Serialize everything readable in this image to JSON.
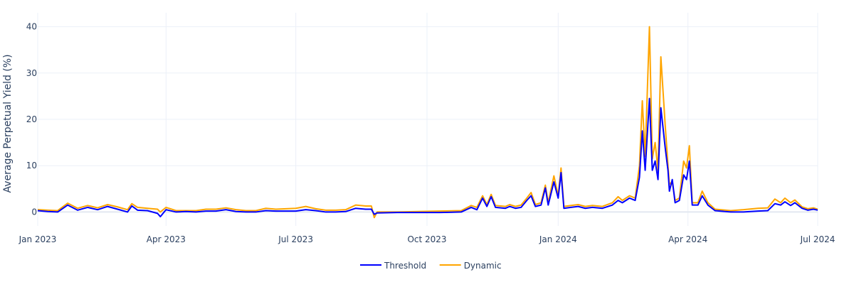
{
  "chart_data": {
    "type": "line",
    "title": "",
    "xlabel": "",
    "ylabel": "Average Perpetual Yield (%)",
    "x_range": [
      "2023-01-01",
      "2024-07-01"
    ],
    "ylim": [
      -3,
      43
    ],
    "x_ticks": [
      {
        "date": "2023-01-01",
        "label": "Jan 2023"
      },
      {
        "date": "2023-04-01",
        "label": "Apr 2023"
      },
      {
        "date": "2023-07-01",
        "label": "Jul 2023"
      },
      {
        "date": "2023-10-01",
        "label": "Oct 2023"
      },
      {
        "date": "2024-01-01",
        "label": "Jan 2024"
      },
      {
        "date": "2024-04-01",
        "label": "Apr 2024"
      },
      {
        "date": "2024-07-01",
        "label": "Jul 2024"
      }
    ],
    "y_ticks": [
      0,
      10,
      20,
      30,
      40
    ],
    "grid": true,
    "legend_position": "bottom-center",
    "series": [
      {
        "name": "Threshold",
        "color": "#0000ff",
        "points": [
          [
            "2023-01-01",
            0.3
          ],
          [
            "2023-01-08",
            0.1
          ],
          [
            "2023-01-15",
            0.0
          ],
          [
            "2023-01-22",
            1.5
          ],
          [
            "2023-01-29",
            0.4
          ],
          [
            "2023-02-05",
            1.0
          ],
          [
            "2023-02-12",
            0.5
          ],
          [
            "2023-02-19",
            1.2
          ],
          [
            "2023-02-26",
            0.6
          ],
          [
            "2023-03-05",
            0.0
          ],
          [
            "2023-03-08",
            1.3
          ],
          [
            "2023-03-12",
            0.4
          ],
          [
            "2023-03-19",
            0.3
          ],
          [
            "2023-03-26",
            -0.3
          ],
          [
            "2023-03-28",
            -1.0
          ],
          [
            "2023-04-01",
            0.5
          ],
          [
            "2023-04-08",
            0.0
          ],
          [
            "2023-04-15",
            0.1
          ],
          [
            "2023-04-22",
            0.0
          ],
          [
            "2023-04-29",
            0.2
          ],
          [
            "2023-05-06",
            0.2
          ],
          [
            "2023-05-13",
            0.5
          ],
          [
            "2023-05-20",
            0.1
          ],
          [
            "2023-05-27",
            0.0
          ],
          [
            "2023-06-03",
            0.0
          ],
          [
            "2023-06-10",
            0.3
          ],
          [
            "2023-06-17",
            0.2
          ],
          [
            "2023-06-24",
            0.2
          ],
          [
            "2023-07-01",
            0.2
          ],
          [
            "2023-07-08",
            0.5
          ],
          [
            "2023-07-15",
            0.3
          ],
          [
            "2023-07-22",
            0.0
          ],
          [
            "2023-07-29",
            0.0
          ],
          [
            "2023-08-05",
            0.1
          ],
          [
            "2023-08-12",
            0.8
          ],
          [
            "2023-08-19",
            0.6
          ],
          [
            "2023-08-23",
            0.6
          ],
          [
            "2023-08-25",
            -0.5
          ],
          [
            "2023-08-27",
            -0.2
          ],
          [
            "2023-09-10",
            -0.1
          ],
          [
            "2023-09-25",
            -0.1
          ],
          [
            "2023-10-10",
            -0.1
          ],
          [
            "2023-10-25",
            0.0
          ],
          [
            "2023-11-01",
            1.0
          ],
          [
            "2023-11-05",
            0.5
          ],
          [
            "2023-11-09",
            3.0
          ],
          [
            "2023-11-12",
            1.2
          ],
          [
            "2023-11-15",
            3.3
          ],
          [
            "2023-11-18",
            1.0
          ],
          [
            "2023-11-25",
            0.8
          ],
          [
            "2023-11-28",
            1.2
          ],
          [
            "2023-12-02",
            0.8
          ],
          [
            "2023-12-06",
            1.0
          ],
          [
            "2023-12-10",
            2.5
          ],
          [
            "2023-12-13",
            3.5
          ],
          [
            "2023-12-16",
            1.2
          ],
          [
            "2023-12-20",
            1.5
          ],
          [
            "2023-12-23",
            5.2
          ],
          [
            "2023-12-25",
            1.5
          ],
          [
            "2023-12-29",
            6.5
          ],
          [
            "2024-01-01",
            3.0
          ],
          [
            "2024-01-03",
            8.5
          ],
          [
            "2024-01-05",
            0.8
          ],
          [
            "2024-01-10",
            1.0
          ],
          [
            "2024-01-15",
            1.2
          ],
          [
            "2024-01-20",
            0.8
          ],
          [
            "2024-01-25",
            1.0
          ],
          [
            "2024-02-01",
            0.8
          ],
          [
            "2024-02-08",
            1.5
          ],
          [
            "2024-02-12",
            2.5
          ],
          [
            "2024-02-15",
            2.0
          ],
          [
            "2024-02-20",
            3.0
          ],
          [
            "2024-02-24",
            2.5
          ],
          [
            "2024-02-27",
            7.5
          ],
          [
            "2024-02-29",
            17.5
          ],
          [
            "2024-03-02",
            9.0
          ],
          [
            "2024-03-05",
            24.5
          ],
          [
            "2024-03-07",
            9.0
          ],
          [
            "2024-03-09",
            11.0
          ],
          [
            "2024-03-11",
            7.0
          ],
          [
            "2024-03-13",
            22.5
          ],
          [
            "2024-03-16",
            14.0
          ],
          [
            "2024-03-18",
            9.0
          ],
          [
            "2024-03-19",
            4.5
          ],
          [
            "2024-03-21",
            7.0
          ],
          [
            "2024-03-23",
            2.0
          ],
          [
            "2024-03-26",
            2.5
          ],
          [
            "2024-03-29",
            8.0
          ],
          [
            "2024-03-31",
            7.0
          ],
          [
            "2024-04-02",
            11.0
          ],
          [
            "2024-04-04",
            1.5
          ],
          [
            "2024-04-08",
            1.5
          ],
          [
            "2024-04-11",
            3.5
          ],
          [
            "2024-04-15",
            1.5
          ],
          [
            "2024-04-20",
            0.3
          ],
          [
            "2024-05-01",
            0.0
          ],
          [
            "2024-05-10",
            0.0
          ],
          [
            "2024-05-20",
            0.2
          ],
          [
            "2024-05-27",
            0.3
          ],
          [
            "2024-06-01",
            1.8
          ],
          [
            "2024-06-05",
            1.5
          ],
          [
            "2024-06-08",
            2.2
          ],
          [
            "2024-06-12",
            1.4
          ],
          [
            "2024-06-15",
            2.0
          ],
          [
            "2024-06-20",
            0.8
          ],
          [
            "2024-06-24",
            0.4
          ],
          [
            "2024-06-28",
            0.6
          ],
          [
            "2024-07-01",
            0.4
          ]
        ]
      },
      {
        "name": "Dynamic",
        "color": "#ffa500",
        "points": [
          [
            "2023-01-01",
            0.5
          ],
          [
            "2023-01-08",
            0.4
          ],
          [
            "2023-01-15",
            0.3
          ],
          [
            "2023-01-22",
            1.9
          ],
          [
            "2023-01-29",
            0.8
          ],
          [
            "2023-02-05",
            1.4
          ],
          [
            "2023-02-12",
            0.9
          ],
          [
            "2023-02-19",
            1.6
          ],
          [
            "2023-02-26",
            1.1
          ],
          [
            "2023-03-05",
            0.5
          ],
          [
            "2023-03-08",
            1.8
          ],
          [
            "2023-03-12",
            1.0
          ],
          [
            "2023-03-19",
            0.8
          ],
          [
            "2023-03-26",
            0.6
          ],
          [
            "2023-03-28",
            0.0
          ],
          [
            "2023-04-01",
            1.0
          ],
          [
            "2023-04-08",
            0.3
          ],
          [
            "2023-04-15",
            0.3
          ],
          [
            "2023-04-22",
            0.3
          ],
          [
            "2023-04-29",
            0.6
          ],
          [
            "2023-05-06",
            0.6
          ],
          [
            "2023-05-13",
            0.9
          ],
          [
            "2023-05-20",
            0.5
          ],
          [
            "2023-05-27",
            0.3
          ],
          [
            "2023-06-03",
            0.3
          ],
          [
            "2023-06-10",
            0.8
          ],
          [
            "2023-06-17",
            0.6
          ],
          [
            "2023-06-24",
            0.7
          ],
          [
            "2023-07-01",
            0.8
          ],
          [
            "2023-07-08",
            1.2
          ],
          [
            "2023-07-15",
            0.7
          ],
          [
            "2023-07-22",
            0.4
          ],
          [
            "2023-07-29",
            0.4
          ],
          [
            "2023-08-05",
            0.5
          ],
          [
            "2023-08-12",
            1.5
          ],
          [
            "2023-08-19",
            1.3
          ],
          [
            "2023-08-23",
            1.3
          ],
          [
            "2023-08-25",
            -1.2
          ],
          [
            "2023-08-27",
            0.0
          ],
          [
            "2023-09-10",
            0.0
          ],
          [
            "2023-09-25",
            0.1
          ],
          [
            "2023-10-10",
            0.2
          ],
          [
            "2023-10-25",
            0.3
          ],
          [
            "2023-11-01",
            1.4
          ],
          [
            "2023-11-05",
            1.0
          ],
          [
            "2023-11-09",
            3.5
          ],
          [
            "2023-11-12",
            1.6
          ],
          [
            "2023-11-15",
            3.8
          ],
          [
            "2023-11-18",
            1.4
          ],
          [
            "2023-11-25",
            1.2
          ],
          [
            "2023-11-28",
            1.6
          ],
          [
            "2023-12-02",
            1.2
          ],
          [
            "2023-12-06",
            1.5
          ],
          [
            "2023-12-10",
            3.0
          ],
          [
            "2023-12-13",
            4.2
          ],
          [
            "2023-12-16",
            1.6
          ],
          [
            "2023-12-20",
            2.0
          ],
          [
            "2023-12-23",
            5.8
          ],
          [
            "2023-12-25",
            2.0
          ],
          [
            "2023-12-29",
            7.8
          ],
          [
            "2024-01-01",
            3.5
          ],
          [
            "2024-01-03",
            9.5
          ],
          [
            "2024-01-05",
            1.2
          ],
          [
            "2024-01-10",
            1.4
          ],
          [
            "2024-01-15",
            1.6
          ],
          [
            "2024-01-20",
            1.2
          ],
          [
            "2024-01-25",
            1.4
          ],
          [
            "2024-02-01",
            1.2
          ],
          [
            "2024-02-08",
            2.0
          ],
          [
            "2024-02-12",
            3.3
          ],
          [
            "2024-02-15",
            2.5
          ],
          [
            "2024-02-20",
            3.5
          ],
          [
            "2024-02-24",
            3.0
          ],
          [
            "2024-02-27",
            10.0
          ],
          [
            "2024-02-29",
            24.0
          ],
          [
            "2024-03-02",
            12.0
          ],
          [
            "2024-03-05",
            40.0
          ],
          [
            "2024-03-07",
            11.5
          ],
          [
            "2024-03-09",
            15.0
          ],
          [
            "2024-03-11",
            9.0
          ],
          [
            "2024-03-13",
            33.5
          ],
          [
            "2024-03-16",
            19.0
          ],
          [
            "2024-03-18",
            10.0
          ],
          [
            "2024-03-19",
            6.0
          ],
          [
            "2024-03-21",
            6.5
          ],
          [
            "2024-03-23",
            2.5
          ],
          [
            "2024-03-26",
            3.0
          ],
          [
            "2024-03-29",
            11.0
          ],
          [
            "2024-03-31",
            9.5
          ],
          [
            "2024-04-02",
            14.3
          ],
          [
            "2024-04-04",
            2.0
          ],
          [
            "2024-04-08",
            2.0
          ],
          [
            "2024-04-11",
            4.5
          ],
          [
            "2024-04-15",
            2.0
          ],
          [
            "2024-04-20",
            0.6
          ],
          [
            "2024-05-01",
            0.3
          ],
          [
            "2024-05-10",
            0.5
          ],
          [
            "2024-05-20",
            0.8
          ],
          [
            "2024-05-27",
            0.9
          ],
          [
            "2024-06-01",
            2.8
          ],
          [
            "2024-06-05",
            2.0
          ],
          [
            "2024-06-08",
            3.0
          ],
          [
            "2024-06-12",
            2.0
          ],
          [
            "2024-06-15",
            2.6
          ],
          [
            "2024-06-20",
            1.1
          ],
          [
            "2024-06-24",
            0.7
          ],
          [
            "2024-06-28",
            0.9
          ],
          [
            "2024-07-01",
            0.6
          ]
        ]
      }
    ]
  }
}
